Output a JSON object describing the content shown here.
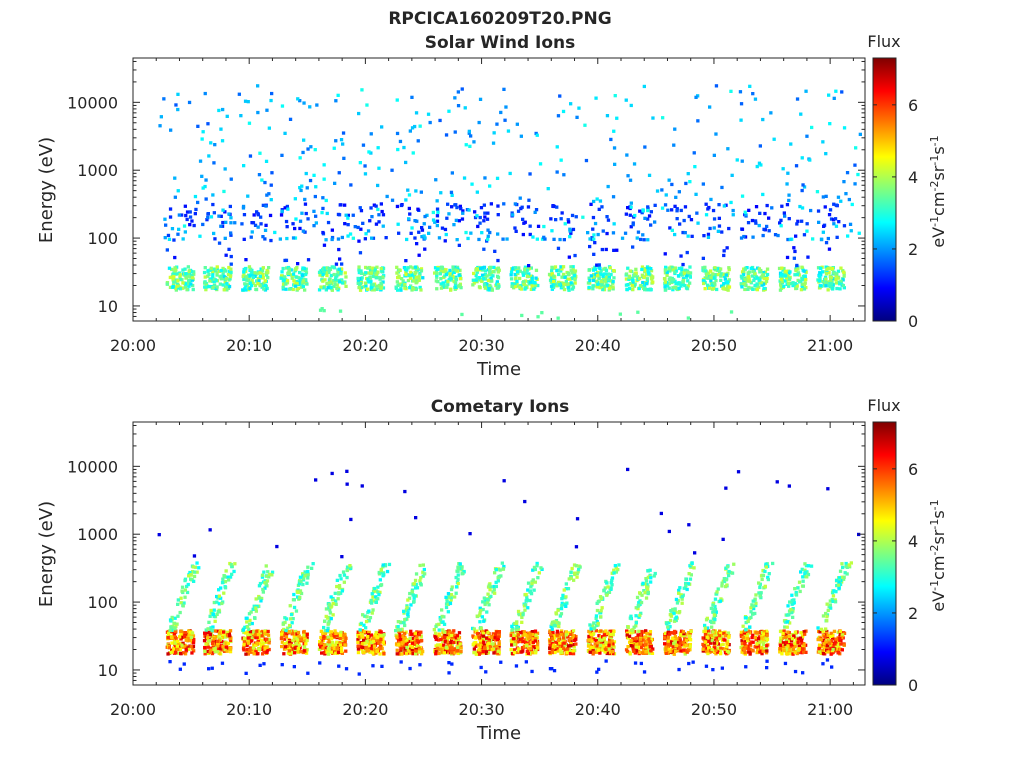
{
  "figure": {
    "file_title": "RPCICA160209T20.PNG"
  },
  "colormap": {
    "name": "jet",
    "stops": [
      "#00007f",
      "#0000ff",
      "#007fff",
      "#00ffff",
      "#7fff7f",
      "#ffff00",
      "#ff7f00",
      "#ff0000",
      "#7f0000"
    ]
  },
  "chart_data": [
    {
      "type": "heatmap",
      "title": "Solar Wind Ions",
      "xlabel": "Time",
      "ylabel": "Energy (eV)",
      "x_time_range": [
        "20:00",
        "21:03"
      ],
      "x_tick_labels": [
        "20:00",
        "20:10",
        "20:20",
        "20:30",
        "20:40",
        "20:50",
        "21:00"
      ],
      "y_scale": "log",
      "y_range": [
        6,
        45000
      ],
      "y_tick_values": [
        10,
        100,
        1000,
        10000
      ],
      "y_tick_labels": [
        "10",
        "100",
        "1000",
        "10000"
      ],
      "colorbar": {
        "title": "Flux",
        "unit_label": "eV-1cm-2sr-1s-1",
        "range": [
          0,
          7.3
        ],
        "ticks": [
          0,
          2,
          4,
          6
        ]
      },
      "grid": false,
      "pattern": {
        "band_starts_min": [
          2.8,
          6.0,
          9.3,
          12.6,
          15.9,
          19.2,
          22.5,
          25.8,
          29.1,
          32.4,
          35.7,
          39.0,
          42.3,
          45.6,
          48.9,
          52.2,
          55.5,
          58.8
        ],
        "band_energy_range_eV": [
          18,
          40
        ],
        "band_flux_typical": 3.4,
        "sparse_counts_energy_range_eV": [
          100,
          20000
        ],
        "sparse_counts_flux_typical": 2.3
      }
    },
    {
      "type": "heatmap",
      "title": "Cometary Ions",
      "xlabel": "Time",
      "ylabel": "Energy (eV)",
      "x_time_range": [
        "20:00",
        "21:03"
      ],
      "x_tick_labels": [
        "20:00",
        "20:10",
        "20:20",
        "20:30",
        "20:40",
        "20:50",
        "21:00"
      ],
      "y_scale": "log",
      "y_range": [
        6,
        45000
      ],
      "y_tick_values": [
        10,
        100,
        1000,
        10000
      ],
      "y_tick_labels": [
        "10",
        "100",
        "1000",
        "10000"
      ],
      "colorbar": {
        "title": "Flux",
        "unit_label": "eV-1cm-2sr-1s-1",
        "range": [
          0,
          7.3
        ],
        "ticks": [
          0,
          2,
          4,
          6
        ]
      },
      "grid": false,
      "pattern": {
        "band_starts_min": [
          2.8,
          6.0,
          9.3,
          12.6,
          15.9,
          19.2,
          22.5,
          25.8,
          29.1,
          32.4,
          35.7,
          39.0,
          42.3,
          45.6,
          48.9,
          52.2,
          55.5,
          58.8
        ],
        "band_energy_range_eV": [
          18,
          40
        ],
        "band_flux_peak": 6.6,
        "dispersion_energy_range_eV": [
          40,
          400
        ],
        "dispersion_flux_typical": 3.3
      }
    }
  ]
}
